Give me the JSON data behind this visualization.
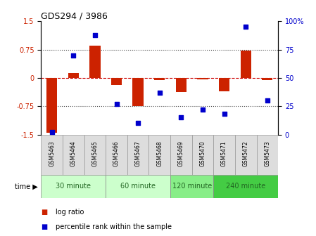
{
  "title": "GDS294 / 3986",
  "samples": [
    "GSM5463",
    "GSM5464",
    "GSM5465",
    "GSM5466",
    "GSM5467",
    "GSM5468",
    "GSM5469",
    "GSM5470",
    "GSM5471",
    "GSM5472",
    "GSM5473"
  ],
  "log_ratio": [
    -1.45,
    0.12,
    0.85,
    -0.18,
    -0.75,
    -0.05,
    -0.38,
    -0.04,
    -0.35,
    0.72,
    -0.05
  ],
  "percentile": [
    2,
    70,
    88,
    27,
    10,
    37,
    15,
    22,
    18,
    95,
    30
  ],
  "groups": [
    {
      "label": "30 minute",
      "start": 0,
      "end": 3,
      "color": "#ccffcc"
    },
    {
      "label": "60 minute",
      "start": 3,
      "end": 6,
      "color": "#ccffcc"
    },
    {
      "label": "120 minute",
      "start": 6,
      "end": 8,
      "color": "#88ee88"
    },
    {
      "label": "240 minute",
      "start": 8,
      "end": 11,
      "color": "#44cc44"
    }
  ],
  "ylim_left": [
    -1.5,
    1.5
  ],
  "ylim_right": [
    0,
    100
  ],
  "yticks_left": [
    -1.5,
    -0.75,
    0,
    0.75,
    1.5
  ],
  "yticks_right": [
    0,
    25,
    50,
    75,
    100
  ],
  "bar_color": "#cc2200",
  "scatter_color": "#0000cc",
  "zero_line_color": "#cc0000",
  "dotted_line_color": "#444444",
  "background_plot": "#ffffff",
  "time_label": "time"
}
